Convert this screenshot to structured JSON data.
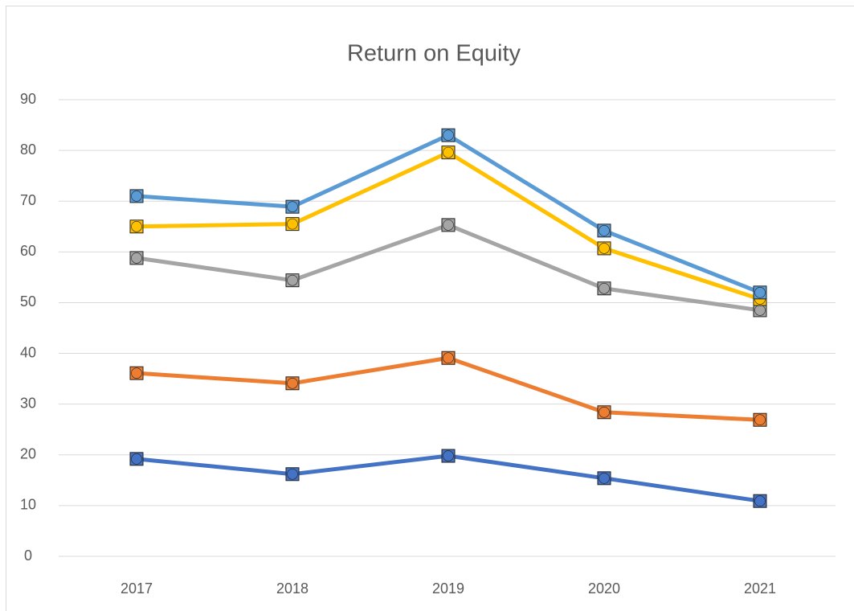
{
  "chart_data": {
    "type": "line",
    "title": "Return on Equity",
    "categories": [
      "2017",
      "2018",
      "2019",
      "2020",
      "2021"
    ],
    "series": [
      {
        "color": "#4472c4",
        "values": [
          19.2,
          16.2,
          19.8,
          15.4,
          10.9
        ]
      },
      {
        "color": "#ed7d31",
        "values": [
          36.1,
          34.1,
          39.1,
          28.4,
          26.9
        ]
      },
      {
        "color": "#a5a5a5",
        "values": [
          58.8,
          54.4,
          65.3,
          52.8,
          48.5
        ]
      },
      {
        "color": "#ffc000",
        "values": [
          65.0,
          65.5,
          79.6,
          60.7,
          50.7
        ]
      },
      {
        "color": "#5b9bd5",
        "values": [
          71.0,
          68.9,
          83.0,
          64.2,
          52.0
        ]
      }
    ],
    "ylim": [
      0,
      90
    ],
    "yticks": [
      0,
      10,
      20,
      30,
      40,
      50,
      60,
      70,
      80,
      90
    ],
    "grid": true
  }
}
